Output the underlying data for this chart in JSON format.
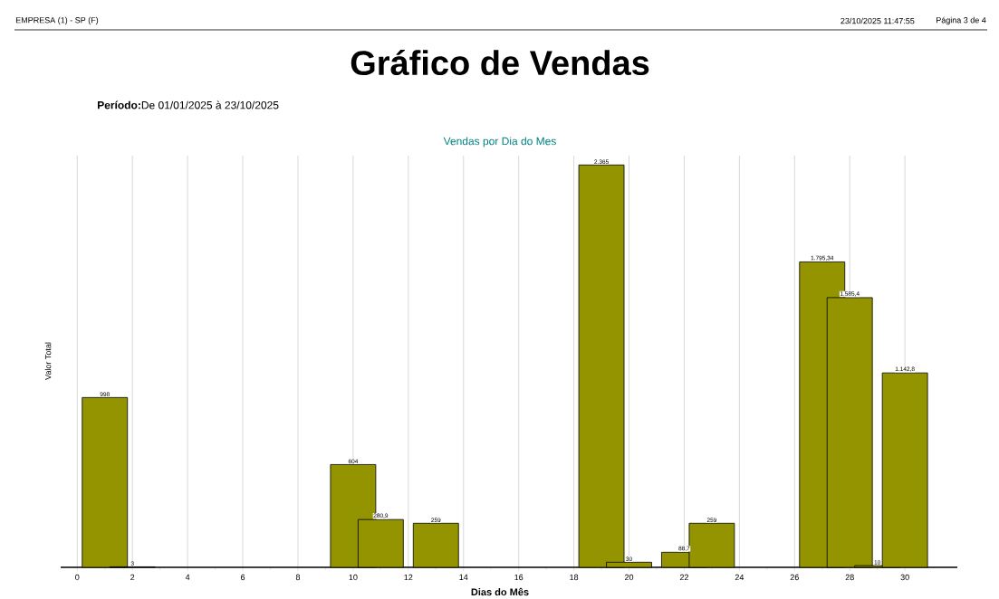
{
  "chart_data": {
    "type": "bar",
    "title": "Gráfico de Vendas",
    "subtitle": "**Período:**De 01/01/2025 à 23/10/2025",
    "annotations": [
      "EMPRESA (1) - SP (F)",
      "23/10/2025 11:47:55",
      "Página 3 de 4",
      "Vendas por Dia do Mes"
    ],
    "xlabel": "Dias do Mês",
    "ylabel": "Valor Total",
    "x": [
      1,
      2,
      10,
      11,
      13,
      19,
      20,
      22,
      23,
      27,
      28,
      29,
      30
    ],
    "values": [
      998,
      3,
      604,
      280.9,
      259,
      2365,
      30,
      88.7,
      259,
      1795.34,
      1585.4,
      10,
      1142.8
    ],
    "value_labels": [
      "998",
      "3",
      "604",
      "280,9",
      "259",
      "2.365",
      "30",
      "88,7",
      "259",
      "1.795,34",
      "1.585,4",
      "10",
      "1.142,8"
    ],
    "color": "#949400",
    "xlim": [
      -0.6,
      31.9
    ],
    "xticks": [
      0,
      2,
      4,
      6,
      8,
      10,
      12,
      14,
      16,
      18,
      20,
      22,
      24,
      26,
      28,
      30
    ],
    "ylim": [
      0,
      2420
    ],
    "tick_labels": "x",
    "grid": "x"
  }
}
